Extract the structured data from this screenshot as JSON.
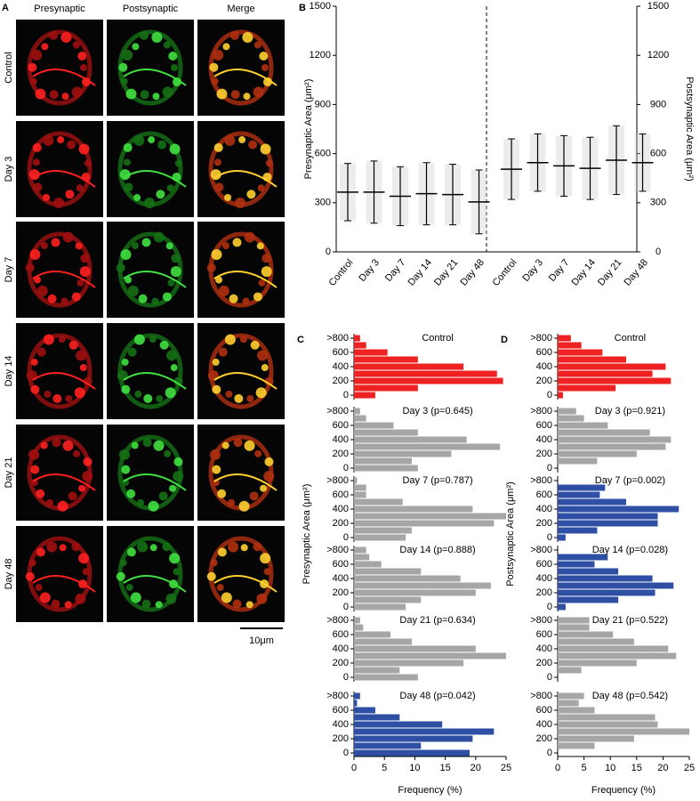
{
  "panel_a": {
    "label": "A",
    "columns": [
      "Presynaptic",
      "Postsynaptic",
      "Merge"
    ],
    "rows": [
      "Control",
      "Day 3",
      "Day 7",
      "Day 14",
      "Day 21",
      "Day 48"
    ],
    "scale_bar": "10μm"
  },
  "chart_data": [
    {
      "type": "meansd",
      "label": "B",
      "categories": [
        "Control",
        "Day 3",
        "Day 7",
        "Day 14",
        "Day 21",
        "Day 48"
      ],
      "series": [
        {
          "color": "#000000",
          "values": [
            365,
            365,
            340,
            355,
            350,
            305
          ],
          "sd": [
            175,
            190,
            180,
            190,
            185,
            195
          ]
        },
        {
          "axis": "y2",
          "color": "#000000",
          "values": [
            505,
            545,
            525,
            510,
            560,
            545
          ],
          "sd": [
            185,
            175,
            185,
            190,
            210,
            175
          ]
        }
      ],
      "ylabel": "Presynaptic Area (μm²)",
      "y2label": "Postsynaptic Area (μm²)",
      "ylim": [
        0,
        1500
      ],
      "yticks": [
        0,
        300,
        600,
        900,
        1200,
        1500
      ],
      "y2lim": [
        0,
        1500
      ],
      "y2ticks": [
        0,
        300,
        600,
        900,
        1200,
        1500
      ]
    },
    {
      "type": "barh",
      "label": "C",
      "categories": [
        "0",
        null,
        "200",
        null,
        "400",
        null,
        "600",
        null,
        ">800"
      ],
      "panels": [
        {
          "title": "Control",
          "color": "#ee2222",
          "values": [
            3.5,
            10.5,
            24.5,
            23.5,
            18,
            10.5,
            5.5,
            2,
            1
          ]
        },
        {
          "title": "Day 3 (p=0.645)",
          "color": "#a6a6a6",
          "values": [
            10.5,
            9.5,
            16,
            24,
            18.5,
            10.5,
            6.5,
            2,
            1
          ]
        },
        {
          "title": "Day 7 (p=0.787)",
          "color": "#a6a6a6",
          "values": [
            8.5,
            9.5,
            23,
            25,
            19.5,
            8,
            2,
            2,
            0.5
          ]
        },
        {
          "title": "Day 14 (p=0.888)",
          "color": "#a6a6a6",
          "values": [
            8.5,
            11,
            20,
            22.5,
            17.5,
            11,
            4.5,
            2.5,
            2
          ]
        },
        {
          "title": "Day 21 (p=0.634)",
          "color": "#a6a6a6",
          "values": [
            10.5,
            7.5,
            18,
            25,
            20,
            9.5,
            6,
            1.5,
            1
          ]
        },
        {
          "title": "Day 48 (p=0.042)",
          "color": "#2e4fa3",
          "values": [
            19,
            11,
            19.5,
            23,
            14.5,
            7.5,
            3.5,
            0.5,
            1
          ]
        }
      ],
      "xlim": [
        0,
        25
      ],
      "xticks": [
        0,
        5,
        10,
        15,
        20,
        25
      ],
      "xlabel": "Frequency (%)",
      "ylabel": "Presynaptic Area (μm²)"
    },
    {
      "type": "barh",
      "label": "D",
      "categories": [
        "0",
        null,
        "200",
        null,
        "400",
        null,
        "600",
        null,
        ">800"
      ],
      "panels": [
        {
          "title": "Control",
          "color": "#ee2222",
          "values": [
            1,
            11,
            21.5,
            18,
            20.5,
            13,
            8.5,
            4.5,
            2.5
          ]
        },
        {
          "title": "Day 3 (p=0.921)",
          "color": "#a6a6a6",
          "values": [
            0,
            7.5,
            15,
            20.5,
            21.5,
            17.5,
            9.5,
            5,
            3.5
          ]
        },
        {
          "title": "Day 7 (p=0.002)",
          "color": "#2e4fa3",
          "values": [
            1.5,
            7.5,
            19,
            19,
            23,
            13,
            8,
            9,
            0
          ]
        },
        {
          "title": "Day 14 (p=0.028)",
          "color": "#2e4fa3",
          "values": [
            1.5,
            11.5,
            18.5,
            22,
            18,
            11.5,
            7,
            9.5,
            0
          ]
        },
        {
          "title": "Day 21 (p=0.522)",
          "color": "#a6a6a6",
          "values": [
            0,
            4.5,
            15,
            22.5,
            21,
            14.5,
            10.5,
            6,
            6
          ]
        },
        {
          "title": "Day 48 (p=0.542)",
          "color": "#a6a6a6",
          "values": [
            0,
            7,
            14.5,
            25,
            19,
            18.5,
            7,
            4,
            5
          ]
        }
      ],
      "xlim": [
        0,
        25
      ],
      "xticks": [
        0,
        5,
        10,
        15,
        20,
        25
      ],
      "xlabel": "Frequency (%)",
      "ylabel": "Postsynaptic Area (μm²)"
    }
  ]
}
